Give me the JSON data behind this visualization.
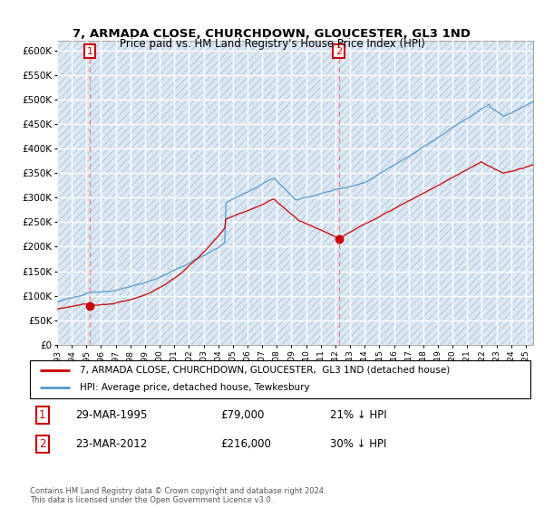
{
  "title": "7, ARMADA CLOSE, CHURCHDOWN, GLOUCESTER, GL3 1ND",
  "subtitle": "Price paid vs. HM Land Registry's House Price Index (HPI)",
  "ylim": [
    0,
    620000
  ],
  "yticks": [
    0,
    50000,
    100000,
    150000,
    200000,
    250000,
    300000,
    350000,
    400000,
    450000,
    500000,
    550000,
    600000
  ],
  "ytick_labels": [
    "£0",
    "£50K",
    "£100K",
    "£150K",
    "£200K",
    "£250K",
    "£300K",
    "£350K",
    "£400K",
    "£450K",
    "£500K",
    "£550K",
    "£600K"
  ],
  "xlim_start": 1993.0,
  "xlim_end": 2025.5,
  "background_color": "#ffffff",
  "plot_bg_color": "#dce9f5",
  "hatch_color": "#c0d0e0",
  "grid_color": "#ffffff",
  "hpi_color": "#5599cc",
  "price_color": "#cc0000",
  "dashed_line_color": "#ff8888",
  "legend_label_price": "7, ARMADA CLOSE, CHURCHDOWN, GLOUCESTER,  GL3 1ND (detached house)",
  "legend_label_hpi": "HPI: Average price, detached house, Tewkesbury",
  "annotation1_date": "29-MAR-1995",
  "annotation1_price": "£79,000",
  "annotation1_hpi": "21% ↓ HPI",
  "annotation2_date": "23-MAR-2012",
  "annotation2_price": "£216,000",
  "annotation2_hpi": "30% ↓ HPI",
  "footer": "Contains HM Land Registry data © Crown copyright and database right 2024.\nThis data is licensed under the Open Government Licence v3.0.",
  "sale1_year": 1995.23,
  "sale1_value": 79000,
  "sale2_year": 2012.23,
  "sale2_value": 216000
}
